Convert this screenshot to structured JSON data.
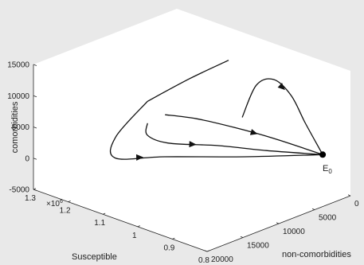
{
  "chart_data": {
    "type": "line",
    "projection": "3d",
    "title": "",
    "xlabel": "Susceptible",
    "ylabel": "non-comorbidities",
    "zlabel": "comorbidities",
    "x_exponent_label": "×10",
    "x_exponent_power": "6",
    "xlim": [
      0.8,
      1.3
    ],
    "ylim": [
      0,
      20000
    ],
    "zlim": [
      -5000,
      15000
    ],
    "x_ticks": [
      {
        "value": 0.8,
        "label": "0.8"
      },
      {
        "value": 0.9,
        "label": "0.9"
      },
      {
        "value": 1.0,
        "label": "1"
      },
      {
        "value": 1.1,
        "label": "1.1"
      },
      {
        "value": 1.2,
        "label": "1.2"
      },
      {
        "value": 1.3,
        "label": "1.3"
      }
    ],
    "y_ticks": [
      {
        "value": 0,
        "label": "0"
      },
      {
        "value": 5000,
        "label": "5000"
      },
      {
        "value": 10000,
        "label": "10000"
      },
      {
        "value": 15000,
        "label": "15000"
      },
      {
        "value": 20000,
        "label": "20000"
      }
    ],
    "z_ticks": [
      {
        "value": -5000,
        "label": "-5000"
      },
      {
        "value": 0,
        "label": "0"
      },
      {
        "value": 5000,
        "label": "5000"
      },
      {
        "value": 10000,
        "label": "10000"
      },
      {
        "value": 15000,
        "label": "15000"
      }
    ],
    "grid": false,
    "equilibrium": {
      "label": "E",
      "subscript": "0",
      "x": 0.88,
      "y": 0,
      "z": 0
    },
    "series": [
      {
        "points": [
          [
            1.06,
            2500,
            3500
          ],
          [
            1.03,
            2000,
            9000
          ],
          [
            0.99,
            1500,
            10500
          ],
          [
            0.95,
            1000,
            8500
          ],
          [
            0.92,
            500,
            4500
          ],
          [
            0.88,
            0,
            0
          ]
        ],
        "arrow_at": 2
      },
      {
        "points": [
          [
            1.21,
            6000,
            2500
          ],
          [
            1.14,
            5000,
            2800
          ],
          [
            1.06,
            3500,
            2300
          ],
          [
            0.98,
            2000,
            1500
          ],
          [
            0.88,
            0,
            0
          ]
        ],
        "arrow_at": 2
      },
      {
        "points": [
          [
            1.24,
            7000,
            1000
          ],
          [
            1.23,
            7500,
            -500
          ],
          [
            1.18,
            7000,
            -1000
          ],
          [
            1.08,
            5000,
            -300
          ],
          [
            0.98,
            3000,
            0
          ],
          [
            0.88,
            0,
            0
          ]
        ],
        "arrow_at": 2
      },
      {
        "points": [
          [
            1.24,
            7000,
            4500
          ],
          [
            1.27,
            10000,
            -500
          ],
          [
            1.25,
            11000,
            -3000
          ],
          [
            1.15,
            9000,
            -1700
          ],
          [
            1.0,
            5000,
            -500
          ],
          [
            0.88,
            0,
            0
          ]
        ],
        "arrow_at": 2
      },
      {
        "points": [
          [
            1.24,
            7000,
            4500
          ],
          [
            1.18,
            4000,
            8000
          ],
          [
            1.12,
            1500,
            11000
          ]
        ],
        "arrow_at": -1
      }
    ]
  }
}
